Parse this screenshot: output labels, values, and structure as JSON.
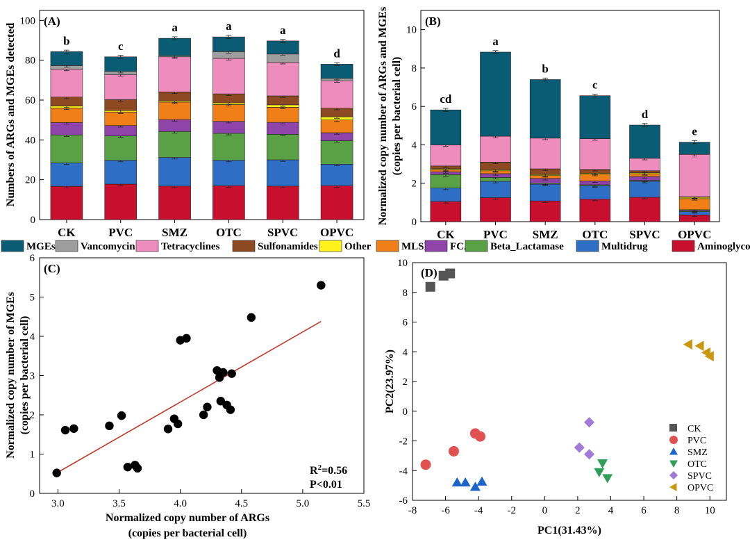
{
  "stack_colors": {
    "Aminoglycoside": "#c8102e",
    "Multidrug": "#2e6ec4",
    "Beta_Lactamase": "#5aa146",
    "FCA": "#8e44a8",
    "MLSB": "#f07f17",
    "Other": "#fff21a",
    "Sulfonamides": "#8d4a22",
    "Tetracyclines": "#ee8cbc",
    "Vancomycin": "#9e9e9e",
    "MGEs": "#0a5c74"
  },
  "legend": [
    "MGEs",
    "Vancomycin",
    "Tetracyclines",
    "Sulfonamides",
    "Other",
    "MLSB",
    "FCA",
    "Beta_Lactamase",
    "Multidrug",
    "Aminoglycoside"
  ],
  "chart_data": [
    {
      "panel": "(A)",
      "type": "bar",
      "stacked": true,
      "ylabel": "Numbers of ARGs and MGEs detected",
      "ylim": [
        0,
        105
      ],
      "yticks": [
        0,
        20,
        40,
        60,
        80,
        100
      ],
      "categories": [
        "CK",
        "PVC",
        "SMZ",
        "OTC",
        "SPVC",
        "OPVC"
      ],
      "letters": [
        "b",
        "c",
        "a",
        "a",
        "a",
        "d"
      ],
      "series": [
        {
          "name": "Aminoglycoside",
          "values": [
            16.7,
            17.8,
            16.8,
            17.0,
            16.8,
            17.0
          ]
        },
        {
          "name": "Multidrug",
          "values": [
            11.8,
            12.0,
            14.4,
            12.8,
            13.2,
            10.8
          ]
        },
        {
          "name": "Beta_Lactamase",
          "values": [
            14.0,
            12.2,
            13.0,
            13.5,
            12.8,
            11.8
          ]
        },
        {
          "name": "FCA",
          "values": [
            6.2,
            5.2,
            6.0,
            6.0,
            6.0,
            4.0
          ]
        },
        {
          "name": "MLSB",
          "values": [
            7.3,
            6.8,
            8.8,
            8.5,
            7.6,
            6.4
          ]
        },
        {
          "name": "Other",
          "values": [
            1.0,
            0.7,
            0.6,
            0.8,
            1.2,
            1.6
          ]
        },
        {
          "name": "Sulfonamides",
          "values": [
            4.5,
            5.5,
            4.5,
            4.5,
            4.5,
            4.3
          ]
        },
        {
          "name": "Tetracyclines",
          "values": [
            14.0,
            12.6,
            17.6,
            17.8,
            16.8,
            13.8
          ]
        },
        {
          "name": "Vancomycin",
          "values": [
            1.8,
            1.6,
            0.6,
            3.4,
            4.2,
            1.2
          ]
        },
        {
          "name": "MGEs",
          "values": [
            7.0,
            7.3,
            8.7,
            7.4,
            6.6,
            7.1
          ]
        }
      ]
    },
    {
      "panel": "(B)",
      "type": "bar",
      "stacked": true,
      "ylabel": "Normalized copy number of ARGs and MGEs (copies per bacterial cell)",
      "ylim": [
        0,
        11
      ],
      "yticks": [
        0,
        2,
        4,
        6,
        8,
        10
      ],
      "categories": [
        "CK",
        "PVC",
        "SMZ",
        "OTC",
        "SPVC",
        "OPVC"
      ],
      "letters": [
        "cd",
        "a",
        "b",
        "c",
        "d",
        "e"
      ],
      "series": [
        {
          "name": "Aminoglycoside",
          "values": [
            1.05,
            1.25,
            1.08,
            1.17,
            1.27,
            0.35
          ]
        },
        {
          "name": "Multidrug",
          "values": [
            0.7,
            0.85,
            0.87,
            0.7,
            0.83,
            0.17
          ]
        },
        {
          "name": "Beta_Lactamase",
          "values": [
            0.7,
            0.2,
            0.05,
            0.05,
            0.05,
            0.05
          ]
        },
        {
          "name": "FCA",
          "values": [
            0.15,
            0.2,
            0.25,
            0.2,
            0.2,
            0.05
          ]
        },
        {
          "name": "MLSB",
          "values": [
            0.1,
            0.15,
            0.15,
            0.35,
            0.15,
            0.58
          ]
        },
        {
          "name": "Other",
          "values": [
            0.05,
            0.05,
            0.05,
            0.05,
            0.05,
            0.07
          ]
        },
        {
          "name": "Sulfonamides",
          "values": [
            0.15,
            0.4,
            0.3,
            0.2,
            0.1,
            0.03
          ]
        },
        {
          "name": "Tetracyclines",
          "values": [
            1.1,
            1.35,
            1.6,
            1.6,
            0.65,
            2.2
          ]
        },
        {
          "name": "Vancomycin",
          "values": [
            0.0,
            0.0,
            0.0,
            0.0,
            0.0,
            0.0
          ]
        },
        {
          "name": "MGEs",
          "values": [
            1.82,
            4.38,
            3.05,
            2.24,
            1.73,
            0.64
          ]
        }
      ]
    },
    {
      "panel": "(C)",
      "type": "scatter",
      "xlabel": "Normalized copy number of ARGs (copies per bacterial cell)",
      "ylabel": "Normalized copy number of MGEs (copies per bacterial cell)",
      "xlim": [
        2.85,
        5.5
      ],
      "ylim": [
        0,
        6
      ],
      "xticks": [
        3.0,
        3.5,
        4.0,
        4.5,
        5.0,
        5.5
      ],
      "yticks": [
        0,
        1,
        2,
        3,
        4,
        5,
        6
      ],
      "points": [
        [
          2.99,
          0.52
        ],
        [
          3.06,
          1.61
        ],
        [
          3.13,
          1.65
        ],
        [
          3.42,
          1.72
        ],
        [
          3.52,
          1.98
        ],
        [
          3.57,
          0.67
        ],
        [
          3.63,
          0.72
        ],
        [
          3.65,
          0.64
        ],
        [
          3.9,
          1.64
        ],
        [
          3.95,
          1.9
        ],
        [
          3.98,
          1.77
        ],
        [
          4.0,
          3.9
        ],
        [
          4.05,
          3.95
        ],
        [
          4.19,
          2.0
        ],
        [
          4.22,
          2.2
        ],
        [
          4.3,
          3.13
        ],
        [
          4.33,
          2.35
        ],
        [
          4.32,
          2.95
        ],
        [
          4.35,
          3.08
        ],
        [
          4.38,
          2.25
        ],
        [
          4.41,
          2.13
        ],
        [
          4.42,
          3.05
        ],
        [
          4.58,
          4.48
        ],
        [
          5.15,
          5.3
        ]
      ],
      "fit_line": {
        "x": [
          2.99,
          5.15
        ],
        "y": [
          0.52,
          4.38
        ]
      },
      "fit_color": "#c0392b",
      "annotations": [
        "R²=0.56",
        "P<0.01"
      ]
    },
    {
      "panel": "(D)",
      "type": "scatter",
      "xlabel": "PC1(31.43%)",
      "ylabel": "PC2(23.97%)",
      "xlim": [
        -8,
        11
      ],
      "ylim": [
        -6,
        10
      ],
      "xticks": [
        -8,
        -6,
        -4,
        -2,
        0,
        2,
        4,
        6,
        8,
        10
      ],
      "yticks": [
        -6,
        -4,
        -2,
        0,
        2,
        4,
        6,
        8,
        10
      ],
      "series": [
        {
          "name": "CK",
          "marker": "square",
          "color": "#555555",
          "points": [
            [
              -6.9,
              8.35
            ],
            [
              -6.1,
              9.1
            ],
            [
              -5.7,
              9.25
            ]
          ]
        },
        {
          "name": "PVC",
          "marker": "circle",
          "color": "#e05252",
          "points": [
            [
              -7.2,
              -3.6
            ],
            [
              -5.5,
              -2.7
            ],
            [
              -4.2,
              -1.5
            ],
            [
              -3.9,
              -1.7
            ]
          ]
        },
        {
          "name": "SMZ",
          "marker": "triangle-up",
          "color": "#1c64c8",
          "points": [
            [
              -5.3,
              -4.8
            ],
            [
              -4.8,
              -4.8
            ],
            [
              -4.2,
              -5.1
            ],
            [
              -3.8,
              -4.75
            ]
          ]
        },
        {
          "name": "OTC",
          "marker": "triangle-down",
          "color": "#2f9e5b",
          "points": [
            [
              3.5,
              -3.5
            ],
            [
              3.3,
              -4.1
            ],
            [
              3.8,
              -4.5
            ]
          ]
        },
        {
          "name": "SPVC",
          "marker": "diamond",
          "color": "#a27bd8",
          "points": [
            [
              2.7,
              -0.75
            ],
            [
              2.1,
              -2.45
            ],
            [
              2.7,
              -2.9
            ]
          ]
        },
        {
          "name": "OPVC",
          "marker": "triangle-left",
          "color": "#c9980f",
          "points": [
            [
              8.7,
              4.5
            ],
            [
              9.4,
              4.4
            ],
            [
              9.8,
              3.95
            ],
            [
              10.0,
              3.7
            ]
          ]
        }
      ]
    }
  ]
}
